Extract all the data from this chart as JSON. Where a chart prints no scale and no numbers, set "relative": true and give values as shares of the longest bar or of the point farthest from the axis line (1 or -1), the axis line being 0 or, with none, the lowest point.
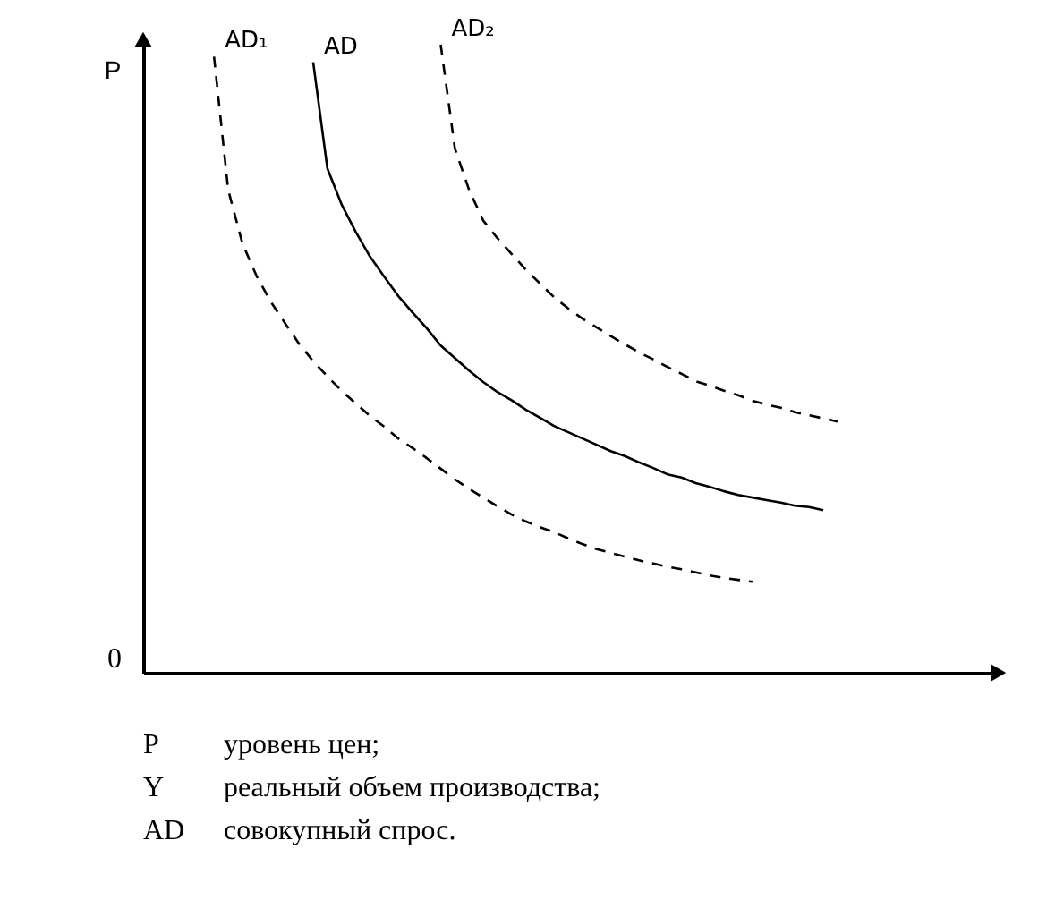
{
  "chart_data": {
    "type": "line",
    "relative": true,
    "ylabel": "P",
    "legend": false,
    "grid": false,
    "tick_labels": false,
    "marker": "none",
    "categories": [
      null,
      null,
      null,
      null,
      null,
      null,
      null,
      null,
      null,
      null,
      null,
      null,
      null,
      null,
      null,
      null,
      null,
      null,
      null,
      null,
      null,
      null,
      null,
      null,
      null,
      null,
      null,
      null,
      null,
      null,
      null,
      null,
      null,
      null,
      null,
      null,
      null,
      null,
      null,
      null,
      null,
      null,
      null,
      null,
      null,
      null,
      null,
      null,
      null,
      null,
      null,
      null,
      null,
      null,
      null,
      null,
      null,
      null,
      null,
      null,
      null
    ],
    "series": [
      {
        "name": "AD₁",
        "color": "#000000",
        "line_style": "dashed",
        "values": [
          null,
          null,
          null,
          null,
          null,
          0.981,
          0.769,
          0.684,
          0.632,
          0.591,
          0.557,
          0.524,
          0.496,
          0.472,
          0.449,
          0.429,
          0.409,
          0.392,
          0.373,
          0.358,
          0.342,
          0.325,
          0.308,
          0.293,
          0.279,
          0.265,
          0.252,
          0.241,
          0.232,
          0.224,
          0.214,
          0.205,
          0.197,
          0.191,
          0.185,
          0.179,
          0.174,
          0.169,
          0.165,
          0.16,
          0.155,
          0.151,
          0.148,
          0.145,
          null,
          null,
          null,
          null,
          null,
          null,
          null,
          null,
          null,
          null,
          null,
          null,
          null,
          null,
          null,
          null,
          null
        ]
      },
      {
        "name": "AD",
        "color": "#000000",
        "line_style": "solid",
        "values": [
          null,
          null,
          null,
          null,
          null,
          null,
          null,
          null,
          null,
          null,
          null,
          null,
          0.972,
          0.803,
          0.746,
          0.702,
          0.663,
          0.631,
          0.6,
          0.574,
          0.549,
          0.521,
          0.501,
          0.481,
          0.463,
          0.447,
          0.434,
          0.419,
          0.406,
          0.393,
          0.383,
          0.373,
          0.363,
          0.353,
          0.345,
          0.335,
          0.326,
          0.316,
          0.311,
          0.302,
          0.296,
          0.289,
          0.283,
          0.279,
          0.275,
          0.271,
          0.266,
          0.264,
          0.259,
          null,
          null,
          null,
          null,
          null,
          null,
          null,
          null,
          null,
          null,
          null,
          null
        ]
      },
      {
        "name": "AD₂",
        "color": "#000000",
        "line_style": "dashed",
        "values": [
          null,
          null,
          null,
          null,
          null,
          null,
          null,
          null,
          null,
          null,
          null,
          null,
          null,
          null,
          null,
          null,
          null,
          null,
          null,
          null,
          null,
          1.0,
          0.835,
          0.769,
          0.72,
          0.692,
          0.667,
          0.642,
          0.62,
          0.598,
          0.58,
          0.564,
          0.55,
          0.536,
          0.523,
          0.51,
          0.499,
          0.487,
          0.476,
          0.464,
          0.457,
          0.449,
          0.442,
          0.433,
          0.427,
          0.422,
          0.415,
          0.41,
          0.405,
          0.4,
          null,
          null,
          null,
          null,
          null,
          null,
          null,
          null,
          null,
          null,
          null
        ]
      }
    ],
    "annotations": [
      "0",
      "P",
      "уровень цен;",
      "Y",
      "реальный объем производства;",
      "AD",
      "совокупный спрос."
    ]
  }
}
